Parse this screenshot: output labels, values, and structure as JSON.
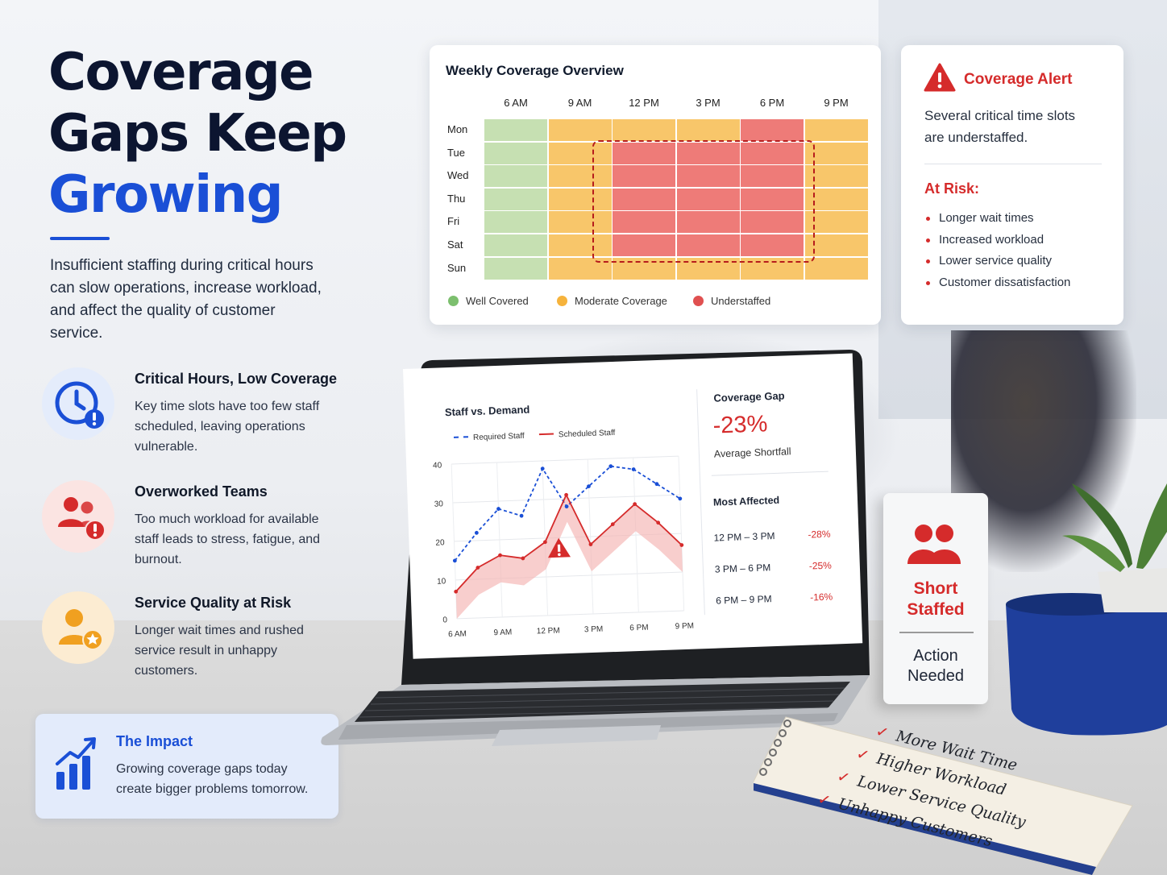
{
  "headline": {
    "line1": "Coverage",
    "line2": "Gaps Keep",
    "line3": "Growing"
  },
  "intro": "Insufficient staffing during critical hours can slow operations, increase workload, and affect the quality of customer service.",
  "features": [
    {
      "title": "Critical Hours, Low Coverage",
      "text": "Key time slots have too few staff scheduled, leaving operations vulnerable.",
      "icon": "clock-alert-icon",
      "color": "#1a4fd6"
    },
    {
      "title": "Overworked Teams",
      "text": "Too much workload for available staff leads to stress, fatigue, and burnout.",
      "icon": "team-alert-icon",
      "color": "#d52b2b"
    },
    {
      "title": "Service Quality at Risk",
      "text": "Longer wait times and rushed service result in unhappy customers.",
      "icon": "customer-star-icon",
      "color": "#f0a020"
    }
  ],
  "impact": {
    "title": "The Impact",
    "text": "Growing coverage gaps today create bigger problems tomorrow.",
    "icon": "growth-chart-icon"
  },
  "heatmap": {
    "title": "Weekly Coverage Overview",
    "columns": [
      "6 AM",
      "9 AM",
      "12 PM",
      "3 PM",
      "6 PM",
      "9 PM"
    ],
    "rows": [
      "Mon",
      "Tue",
      "Wed",
      "Thu",
      "Fri",
      "Sat",
      "Sun"
    ],
    "levels": [
      [
        "well",
        "moderate",
        "moderate",
        "moderate",
        "under",
        "moderate"
      ],
      [
        "well",
        "moderate",
        "under",
        "under",
        "under",
        "moderate"
      ],
      [
        "well",
        "moderate",
        "under",
        "under",
        "under",
        "moderate"
      ],
      [
        "well",
        "moderate",
        "under",
        "under",
        "under",
        "moderate"
      ],
      [
        "well",
        "moderate",
        "under",
        "under",
        "under",
        "moderate"
      ],
      [
        "well",
        "moderate",
        "under",
        "under",
        "under",
        "moderate"
      ],
      [
        "well",
        "moderate",
        "moderate",
        "moderate",
        "moderate",
        "moderate"
      ]
    ],
    "colors": {
      "well": "#c6e0b2",
      "moderate": "#f8c66a",
      "under": "#ee7b78"
    },
    "legend": {
      "well": "Well Covered",
      "moderate": "Moderate Coverage",
      "under": "Understaffed"
    },
    "legend_dot_colors": {
      "well": "#7cbf6e",
      "moderate": "#f6b33c",
      "under": "#e05050"
    }
  },
  "alert": {
    "title": "Coverage Alert",
    "text": "Several critical time slots are understaffed.",
    "risk_title": "At Risk:",
    "risks": [
      "Longer wait times",
      "Increased workload",
      "Lower service quality",
      "Customer dissatisfaction"
    ]
  },
  "laptop": {
    "chart_title": "Staff vs. Demand",
    "gap_title": "Coverage Gap",
    "gap_value": "-23%",
    "gap_sub": "Average Shortfall",
    "most_affected_title": "Most Affected",
    "most_affected": [
      {
        "range": "12 PM – 3 PM",
        "pct": "-28%"
      },
      {
        "range": "3 PM – 6 PM",
        "pct": "-25%"
      },
      {
        "range": "6 PM – 9 PM",
        "pct": "-16%"
      }
    ]
  },
  "chart_data": {
    "type": "line",
    "title": "Staff vs. Demand",
    "x_ticks": [
      "6 AM",
      "9 AM",
      "12 PM",
      "3 PM",
      "6 PM",
      "9 PM"
    ],
    "y_ticks": [
      "0",
      "10",
      "20",
      "30",
      "40"
    ],
    "ylim": [
      0,
      40
    ],
    "x": [
      0,
      0.5,
      1,
      1.5,
      2,
      2.5,
      3,
      3.5,
      4,
      4.5,
      5
    ],
    "series": [
      {
        "name": "Required Staff",
        "color": "#1a4fd6",
        "style": "dashed",
        "values": [
          15,
          22,
          28,
          26,
          38,
          28,
          33,
          38,
          37,
          33,
          29
        ]
      },
      {
        "name": "Scheduled Staff",
        "color": "#d52b2b",
        "style": "solid",
        "values": [
          7,
          13,
          16,
          15,
          19,
          31,
          18,
          23,
          28,
          23,
          17
        ]
      }
    ],
    "legend": "top",
    "grid": true
  },
  "sign": {
    "line1": "Short",
    "line2": "Staffed",
    "line3": "Action",
    "line4": "Needed",
    "icon": "team-icon"
  },
  "notebook": {
    "items": [
      "More Wait Time",
      "Higher Workload",
      "Lower Service Quality",
      "Unhappy Customers"
    ],
    "check": "✓"
  }
}
